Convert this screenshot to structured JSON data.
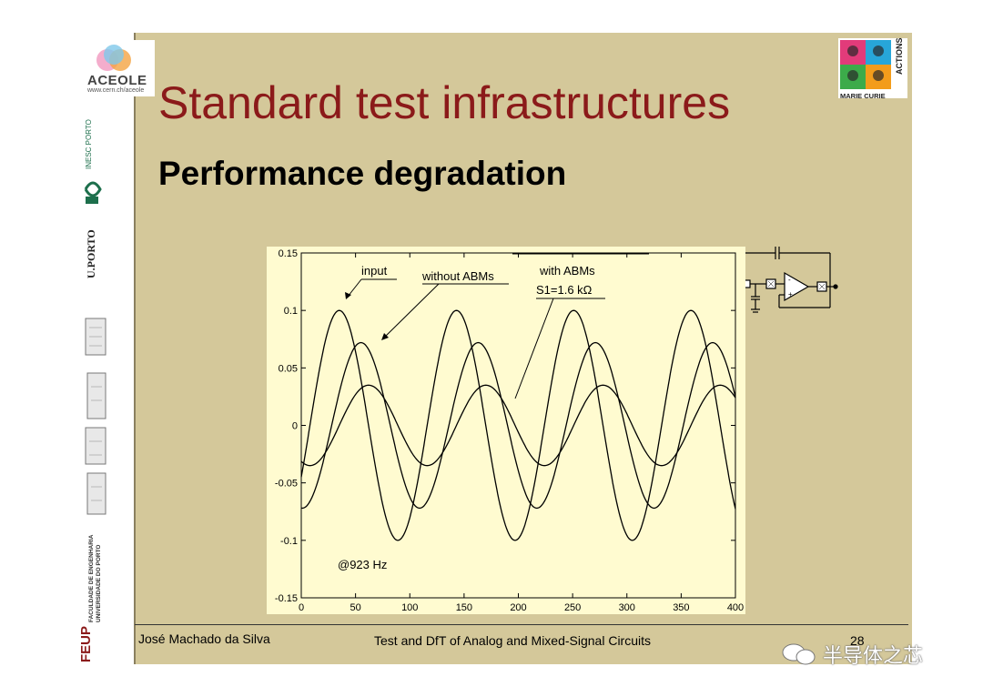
{
  "slide": {
    "title": "Standard test infrastructures",
    "subtitle": "Performance degradation",
    "footer_author": "José Machado da Silva",
    "footer_course": "Test and DfT of Analog and Mixed-Signal Circuits",
    "footer_page": "28",
    "watermark": "半导体之芯"
  },
  "logos": {
    "aceole": "ACEOLE",
    "aceole_url": "www.cern.ch/aceole",
    "inesc": "INESC PORTO",
    "uporto": "U.PORTO",
    "feup_abbr": "FEUP",
    "feup_line1": "FACULDADE DE ENGENHARIA",
    "feup_line2": "UNIVERSIDADE DO PORTO",
    "marie_curie": "MARIE CURIE",
    "actions": "ACTIONS"
  },
  "colors": {
    "slide_bg": "#d4c89a",
    "title": "#8b1a1a",
    "chart_bg": "#fffbd0"
  },
  "chart_data": {
    "type": "line",
    "xlim": [
      0,
      400
    ],
    "ylim": [
      -0.15,
      0.15
    ],
    "xticks": [
      0,
      50,
      100,
      150,
      200,
      250,
      300,
      350,
      400
    ],
    "yticks": [
      0.15,
      0.1,
      0.05,
      0,
      -0.05,
      -0.1,
      -0.15
    ],
    "series": [
      {
        "name": "input",
        "amplitude": 0.1,
        "period": 108,
        "phase_peak_x": 35
      },
      {
        "name": "without ABMs",
        "amplitude": 0.072,
        "period": 108,
        "phase_peak_x": 55
      },
      {
        "name": "with ABMs S1=1.6 kΩ",
        "amplitude": 0.035,
        "offset": 0.0,
        "period": 108,
        "phase_peak_x": 62
      }
    ],
    "annotations": {
      "input": "input",
      "without": "without ABMs",
      "with_line1": "with ABMs",
      "with_line2": "S1=1.6 kΩ",
      "freq": "@923 Hz"
    }
  }
}
